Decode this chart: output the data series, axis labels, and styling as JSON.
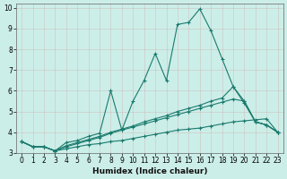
{
  "xlabel": "Humidex (Indice chaleur)",
  "bg_color": "#cceee8",
  "grid_color": "#aaccc8",
  "line_color": "#1a7a6e",
  "xlim": [
    -0.5,
    23.5
  ],
  "ylim": [
    3.0,
    10.2
  ],
  "yticks": [
    3,
    4,
    5,
    6,
    7,
    8,
    9,
    10
  ],
  "xticks": [
    0,
    1,
    2,
    3,
    4,
    5,
    6,
    7,
    8,
    9,
    10,
    11,
    12,
    13,
    14,
    15,
    16,
    17,
    18,
    19,
    20,
    21,
    22,
    23
  ],
  "lines": [
    {
      "x": [
        0,
        1,
        2,
        3,
        4,
        5,
        6,
        7,
        8,
        9,
        10,
        11,
        12,
        13,
        14,
        15,
        16,
        17,
        18,
        19,
        20,
        21,
        22,
        23
      ],
      "y": [
        3.55,
        3.3,
        3.3,
        3.1,
        3.5,
        3.6,
        3.8,
        3.95,
        6.0,
        4.1,
        5.5,
        6.5,
        7.8,
        6.5,
        9.2,
        9.3,
        9.95,
        8.9,
        7.55,
        6.2,
        5.5,
        4.5,
        4.35,
        4.0
      ]
    },
    {
      "x": [
        0,
        1,
        2,
        3,
        4,
        5,
        6,
        7,
        8,
        9,
        10,
        11,
        12,
        13,
        14,
        15,
        16,
        17,
        18,
        19,
        20,
        21,
        22,
        23
      ],
      "y": [
        3.55,
        3.3,
        3.3,
        3.1,
        3.35,
        3.5,
        3.65,
        3.8,
        4.0,
        4.15,
        4.3,
        4.5,
        4.65,
        4.8,
        5.0,
        5.15,
        5.3,
        5.5,
        5.65,
        6.2,
        5.4,
        4.5,
        4.35,
        4.0
      ]
    },
    {
      "x": [
        0,
        1,
        2,
        3,
        4,
        5,
        6,
        7,
        8,
        9,
        10,
        11,
        12,
        13,
        14,
        15,
        16,
        17,
        18,
        19,
        20,
        21,
        22,
        23
      ],
      "y": [
        3.55,
        3.3,
        3.3,
        3.1,
        3.3,
        3.45,
        3.6,
        3.75,
        3.95,
        4.1,
        4.25,
        4.4,
        4.55,
        4.7,
        4.85,
        5.0,
        5.15,
        5.3,
        5.45,
        5.6,
        5.5,
        4.5,
        4.35,
        4.0
      ]
    },
    {
      "x": [
        0,
        1,
        2,
        3,
        4,
        5,
        6,
        7,
        8,
        9,
        10,
        11,
        12,
        13,
        14,
        15,
        16,
        17,
        18,
        19,
        20,
        21,
        22,
        23
      ],
      "y": [
        3.55,
        3.3,
        3.3,
        3.1,
        3.2,
        3.3,
        3.4,
        3.45,
        3.55,
        3.6,
        3.7,
        3.8,
        3.9,
        4.0,
        4.1,
        4.15,
        4.2,
        4.3,
        4.4,
        4.5,
        4.55,
        4.6,
        4.65,
        4.0
      ]
    }
  ]
}
